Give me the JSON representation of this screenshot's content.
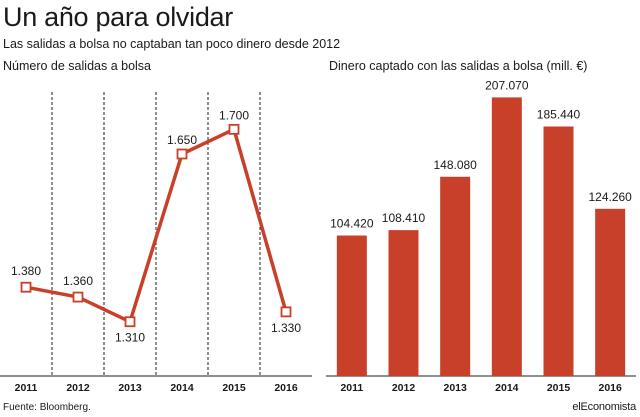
{
  "header": {
    "title": "Un año para olvidar",
    "subtitle": "Las salidas a bolsa no captaban tan poco dinero desde 2012"
  },
  "footer": {
    "source": "Fuente: Bloomberg.",
    "brand": "elEconomista"
  },
  "colors": {
    "accent": "#c9402a",
    "text": "#1a1a1a",
    "grid": "#222222"
  },
  "chart_data": [
    {
      "type": "line",
      "title": "Número de salidas a bolsa",
      "categories": [
        "2011",
        "2012",
        "2013",
        "2014",
        "2015",
        "2016"
      ],
      "values": [
        1380,
        1360,
        1310,
        1650,
        1700,
        1330
      ],
      "value_labels": [
        "1.380",
        "1.360",
        "1.310",
        "1.650",
        "1.700",
        "1.330"
      ],
      "ylim": [
        1200,
        1800
      ],
      "grid": "vertical dashed"
    },
    {
      "type": "bar",
      "title": "Dinero captado con las salidas a bolsa (mill. €)",
      "categories": [
        "2011",
        "2012",
        "2013",
        "2014",
        "2015",
        "2016"
      ],
      "values": [
        104420,
        108410,
        148080,
        207070,
        185440,
        124260
      ],
      "value_labels": [
        "104.420",
        "108.410",
        "148.080",
        "207.070",
        "185.440",
        "124.260"
      ],
      "ylim": [
        0,
        220000
      ]
    }
  ]
}
